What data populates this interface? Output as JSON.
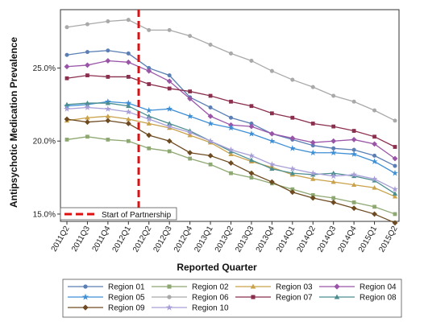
{
  "chart_data": {
    "type": "line",
    "title": "",
    "xlabel": "Reported Quarter",
    "ylabel": "Antipsychotic Medication Prevalence",
    "categories": [
      "2011Q2",
      "2011Q3",
      "2011Q4",
      "2012Q1",
      "2012Q2",
      "2012Q3",
      "2012Q4",
      "2013Q1",
      "2013Q2",
      "2013Q3",
      "2013Q4",
      "2014Q1",
      "2014Q2",
      "2014Q3",
      "2014Q4",
      "2015Q1",
      "2015Q2"
    ],
    "ylim": [
      14.5,
      29.0
    ],
    "yticks": [
      15.0,
      20.0,
      25.0
    ],
    "ytick_labels": [
      "15.0%",
      "20.0%",
      "25.0%"
    ],
    "grid": false,
    "legend_position": "bottom",
    "annotation": {
      "label": "Start of Partnership",
      "x_between": [
        "2012Q1",
        "2012Q2"
      ],
      "color": "#dd1111"
    },
    "series": [
      {
        "name": "Region 01",
        "color": "#5b7fb5",
        "marker": "circle",
        "values": [
          25.9,
          26.1,
          26.2,
          26.0,
          25.0,
          24.5,
          23.0,
          22.3,
          21.6,
          21.2,
          20.5,
          20.1,
          19.7,
          19.5,
          19.4,
          19.0,
          18.3
        ]
      },
      {
        "name": "Region 02",
        "color": "#8ea872",
        "marker": "square",
        "values": [
          20.1,
          20.3,
          20.1,
          20.0,
          19.5,
          19.3,
          18.8,
          18.4,
          17.8,
          17.5,
          17.1,
          16.7,
          16.3,
          16.1,
          15.8,
          15.5,
          15.0
        ]
      },
      {
        "name": "Region 03",
        "color": "#c9a24a",
        "marker": "triangle",
        "values": [
          21.4,
          21.6,
          21.7,
          21.5,
          21.2,
          20.9,
          20.4,
          19.9,
          19.1,
          18.6,
          18.2,
          17.7,
          17.4,
          17.2,
          17.0,
          16.8,
          16.2
        ]
      },
      {
        "name": "Region 04",
        "color": "#9a55a8",
        "marker": "diamond",
        "values": [
          25.1,
          25.2,
          25.5,
          25.4,
          24.8,
          24.1,
          22.9,
          21.7,
          21.1,
          21.0,
          20.5,
          20.2,
          19.9,
          20.0,
          20.1,
          19.8,
          18.8
        ]
      },
      {
        "name": "Region 05",
        "color": "#3f8fd6",
        "marker": "star",
        "values": [
          22.4,
          22.5,
          22.7,
          22.6,
          22.1,
          22.2,
          21.7,
          21.2,
          20.9,
          20.5,
          20.0,
          19.5,
          19.2,
          19.2,
          19.1,
          18.6,
          17.8
        ]
      },
      {
        "name": "Region 06",
        "color": "#a9a9a9",
        "marker": "circle",
        "values": [
          27.8,
          28.0,
          28.2,
          28.3,
          27.6,
          27.6,
          27.2,
          26.6,
          26.0,
          25.5,
          24.8,
          24.2,
          23.7,
          23.1,
          22.7,
          22.1,
          21.4
        ]
      },
      {
        "name": "Region 07",
        "color": "#8b2f4e",
        "marker": "square",
        "values": [
          24.3,
          24.5,
          24.4,
          24.4,
          23.9,
          23.6,
          23.4,
          23.1,
          22.7,
          22.4,
          21.9,
          21.6,
          21.2,
          21.0,
          20.7,
          20.3,
          19.6
        ]
      },
      {
        "name": "Region 08",
        "color": "#4c8e90",
        "marker": "triangle",
        "values": [
          22.5,
          22.6,
          22.6,
          22.4,
          21.7,
          21.2,
          20.7,
          20.0,
          19.3,
          18.7,
          18.1,
          17.8,
          17.7,
          17.8,
          17.6,
          17.3,
          16.4
        ]
      },
      {
        "name": "Region 09",
        "color": "#6e4a20",
        "marker": "diamond",
        "values": [
          21.5,
          21.3,
          21.4,
          21.2,
          20.4,
          20.0,
          19.2,
          19.0,
          18.5,
          17.8,
          17.2,
          16.5,
          16.1,
          15.8,
          15.4,
          15.0,
          14.4
        ]
      },
      {
        "name": "Region 10",
        "color": "#a99fd8",
        "marker": "star",
        "values": [
          22.2,
          22.3,
          22.2,
          22.0,
          21.5,
          21.0,
          20.6,
          20.0,
          19.4,
          19.0,
          18.4,
          18.1,
          17.8,
          17.6,
          17.7,
          17.4,
          16.7
        ]
      }
    ]
  }
}
